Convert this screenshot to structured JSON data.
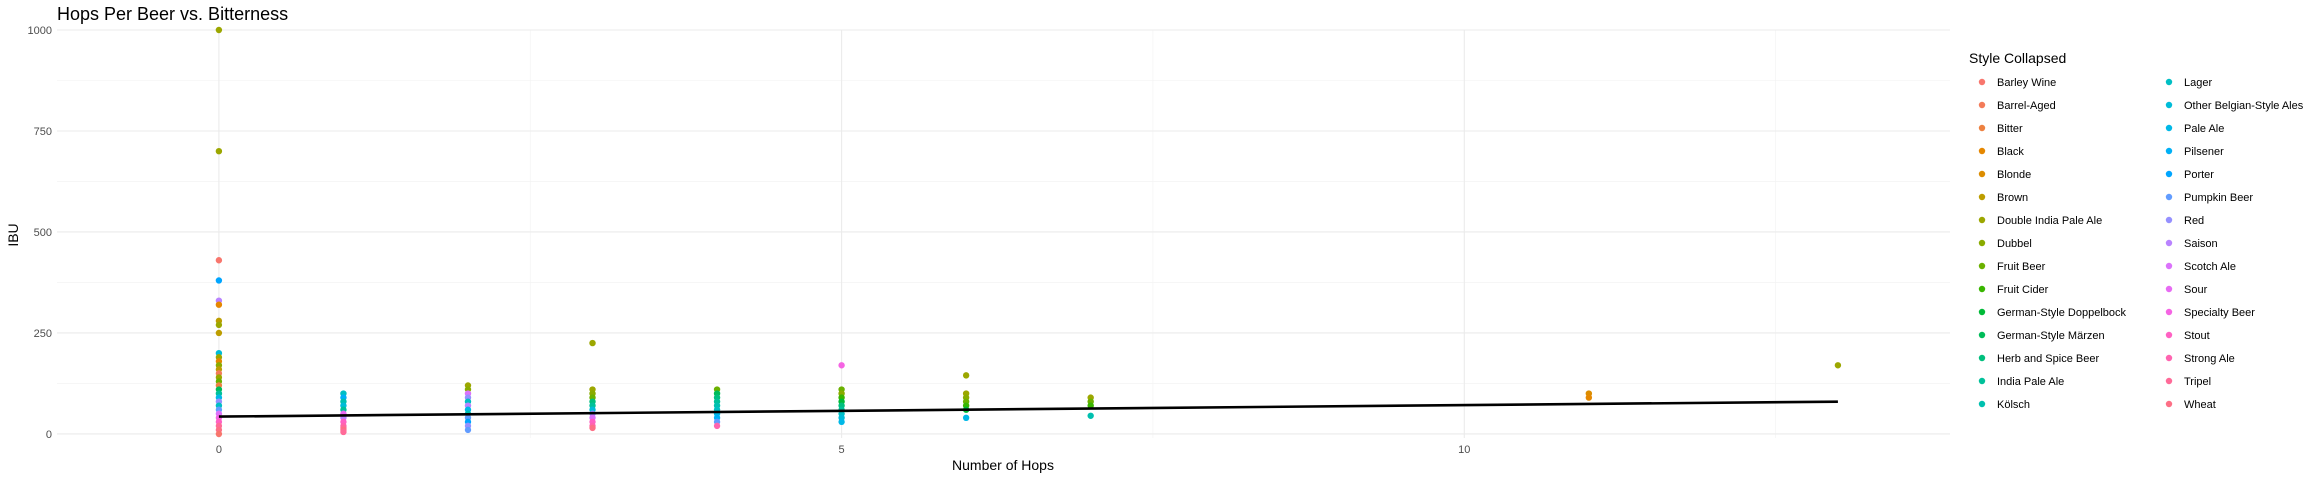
{
  "chart_data": {
    "type": "scatter",
    "title": "Hops Per Beer vs. Bitterness",
    "xlabel": "Number of Hops",
    "ylabel": "IBU",
    "xlim": [
      -1.3,
      13.9
    ],
    "ylim": [
      -10,
      1000
    ],
    "x_ticks": [
      0,
      5,
      10
    ],
    "y_ticks": [
      0,
      250,
      500,
      750,
      1000
    ],
    "grid": true,
    "legend": {
      "title": "Style Collapsed",
      "placement": "right",
      "entries": [
        {
          "name": "Barley Wine",
          "color": "#F8766D"
        },
        {
          "name": "Barrel-Aged",
          "color": "#F37B59"
        },
        {
          "name": "Bitter",
          "color": "#ED8141"
        },
        {
          "name": "Black",
          "color": "#E58700"
        },
        {
          "name": "Blonde",
          "color": "#DC8D00"
        },
        {
          "name": "Brown",
          "color": "#BD9D00"
        },
        {
          "name": "Double India Pale Ale",
          "color": "#9CA700"
        },
        {
          "name": "Dubbel",
          "color": "#8AAB00"
        },
        {
          "name": "Fruit Beer",
          "color": "#6BB100"
        },
        {
          "name": "Fruit Cider",
          "color": "#39B600"
        },
        {
          "name": "German-Style Doppelbock",
          "color": "#00BA38"
        },
        {
          "name": "German-Style Märzen",
          "color": "#00BC59"
        },
        {
          "name": "Herb and Spice Beer",
          "color": "#00BF7D"
        },
        {
          "name": "India Pale Ale",
          "color": "#00C19A"
        },
        {
          "name": "Kölsch",
          "color": "#00C0AF"
        },
        {
          "name": "Lager",
          "color": "#00BFC4"
        },
        {
          "name": "Other Belgian-Style Ales",
          "color": "#00BCD8"
        },
        {
          "name": "Pale Ale",
          "color": "#00B8E7"
        },
        {
          "name": "Pilsener",
          "color": "#00B0F6"
        },
        {
          "name": "Porter",
          "color": "#00A5FF"
        },
        {
          "name": "Pumpkin Beer",
          "color": "#619CFF"
        },
        {
          "name": "Red",
          "color": "#9590FF"
        },
        {
          "name": "Saison",
          "color": "#B983FF"
        },
        {
          "name": "Scotch Ale",
          "color": "#DB72FB"
        },
        {
          "name": "Sour",
          "color": "#E76BF3"
        },
        {
          "name": "Specialty Beer",
          "color": "#F564E3"
        },
        {
          "name": "Stout",
          "color": "#FF61C3"
        },
        {
          "name": "Strong Ale",
          "color": "#FF64B0"
        },
        {
          "name": "Tripel",
          "color": "#FF6A98"
        },
        {
          "name": "Wheat",
          "color": "#FD6F86"
        }
      ]
    },
    "points": [
      {
        "x": 0,
        "y": 1000,
        "color": "#9CA700"
      },
      {
        "x": 0,
        "y": 700,
        "color": "#9CA700"
      },
      {
        "x": 0,
        "y": 430,
        "color": "#F8766D"
      },
      {
        "x": 0,
        "y": 380,
        "color": "#00A5FF"
      },
      {
        "x": 0,
        "y": 330,
        "color": "#B983FF"
      },
      {
        "x": 0,
        "y": 320,
        "color": "#E58700"
      },
      {
        "x": 0,
        "y": 280,
        "color": "#BD9D00"
      },
      {
        "x": 0,
        "y": 270,
        "color": "#9CA700"
      },
      {
        "x": 0,
        "y": 250,
        "color": "#BD9D00"
      },
      {
        "x": 0,
        "y": 200,
        "color": "#00BCD8"
      },
      {
        "x": 0,
        "y": 190,
        "color": "#9CA700"
      },
      {
        "x": 0,
        "y": 180,
        "color": "#E58700"
      },
      {
        "x": 0,
        "y": 170,
        "color": "#8AAB00"
      },
      {
        "x": 0,
        "y": 160,
        "color": "#BD9D00"
      },
      {
        "x": 0,
        "y": 150,
        "color": "#F37B59"
      },
      {
        "x": 0,
        "y": 140,
        "color": "#9CA700"
      },
      {
        "x": 0,
        "y": 130,
        "color": "#6BB100"
      },
      {
        "x": 0,
        "y": 120,
        "color": "#ED8141"
      },
      {
        "x": 0,
        "y": 110,
        "color": "#00BC59"
      },
      {
        "x": 0,
        "y": 100,
        "color": "#00C19A"
      },
      {
        "x": 0,
        "y": 90,
        "color": "#00B8E7"
      },
      {
        "x": 0,
        "y": 80,
        "color": "#9590FF"
      },
      {
        "x": 0,
        "y": 70,
        "color": "#00BFC4"
      },
      {
        "x": 0,
        "y": 60,
        "color": "#619CFF"
      },
      {
        "x": 0,
        "y": 50,
        "color": "#DB72FB"
      },
      {
        "x": 0,
        "y": 40,
        "color": "#F564E3"
      },
      {
        "x": 0,
        "y": 30,
        "color": "#FF61C3"
      },
      {
        "x": 0,
        "y": 20,
        "color": "#FF6A98"
      },
      {
        "x": 0,
        "y": 10,
        "color": "#FD6F86"
      },
      {
        "x": 0,
        "y": 0,
        "color": "#F8766D"
      },
      {
        "x": 1,
        "y": 100,
        "color": "#00BFC4"
      },
      {
        "x": 1,
        "y": 90,
        "color": "#00B0F6"
      },
      {
        "x": 1,
        "y": 80,
        "color": "#00C0AF"
      },
      {
        "x": 1,
        "y": 70,
        "color": "#00BCD8"
      },
      {
        "x": 1,
        "y": 60,
        "color": "#00C19A"
      },
      {
        "x": 1,
        "y": 50,
        "color": "#E76BF3"
      },
      {
        "x": 1,
        "y": 40,
        "color": "#B983FF"
      },
      {
        "x": 1,
        "y": 30,
        "color": "#FF61C3"
      },
      {
        "x": 1,
        "y": 20,
        "color": "#FF64B0"
      },
      {
        "x": 1,
        "y": 15,
        "color": "#FF6A98"
      },
      {
        "x": 1,
        "y": 10,
        "color": "#FD6F86"
      },
      {
        "x": 1,
        "y": 5,
        "color": "#FF6A98"
      },
      {
        "x": 2,
        "y": 120,
        "color": "#9CA700"
      },
      {
        "x": 2,
        "y": 110,
        "color": "#8AAB00"
      },
      {
        "x": 2,
        "y": 100,
        "color": "#DB72FB"
      },
      {
        "x": 2,
        "y": 90,
        "color": "#9590FF"
      },
      {
        "x": 2,
        "y": 80,
        "color": "#00BFC4"
      },
      {
        "x": 2,
        "y": 70,
        "color": "#B983FF"
      },
      {
        "x": 2,
        "y": 60,
        "color": "#00B8E7"
      },
      {
        "x": 2,
        "y": 50,
        "color": "#00C0AF"
      },
      {
        "x": 2,
        "y": 40,
        "color": "#619CFF"
      },
      {
        "x": 2,
        "y": 30,
        "color": "#00A5FF"
      },
      {
        "x": 2,
        "y": 20,
        "color": "#9590FF"
      },
      {
        "x": 2,
        "y": 10,
        "color": "#619CFF"
      },
      {
        "x": 3,
        "y": 225,
        "color": "#9CA700"
      },
      {
        "x": 3,
        "y": 110,
        "color": "#9CA700"
      },
      {
        "x": 3,
        "y": 100,
        "color": "#8AAB00"
      },
      {
        "x": 3,
        "y": 90,
        "color": "#6BB100"
      },
      {
        "x": 3,
        "y": 80,
        "color": "#00BF7D"
      },
      {
        "x": 3,
        "y": 70,
        "color": "#00C19A"
      },
      {
        "x": 3,
        "y": 60,
        "color": "#00BCD8"
      },
      {
        "x": 3,
        "y": 50,
        "color": "#9590FF"
      },
      {
        "x": 3,
        "y": 40,
        "color": "#DB72FB"
      },
      {
        "x": 3,
        "y": 30,
        "color": "#FF61C3"
      },
      {
        "x": 3,
        "y": 20,
        "color": "#FF64B0"
      },
      {
        "x": 3,
        "y": 15,
        "color": "#FD6F86"
      },
      {
        "x": 4,
        "y": 110,
        "color": "#6BB100"
      },
      {
        "x": 4,
        "y": 100,
        "color": "#00BC59"
      },
      {
        "x": 4,
        "y": 90,
        "color": "#00BF7D"
      },
      {
        "x": 4,
        "y": 80,
        "color": "#00C19A"
      },
      {
        "x": 4,
        "y": 70,
        "color": "#00C0AF"
      },
      {
        "x": 4,
        "y": 60,
        "color": "#00BFC4"
      },
      {
        "x": 4,
        "y": 50,
        "color": "#00B8E7"
      },
      {
        "x": 4,
        "y": 40,
        "color": "#00B0F6"
      },
      {
        "x": 4,
        "y": 30,
        "color": "#619CFF"
      },
      {
        "x": 4,
        "y": 20,
        "color": "#FF64B0"
      },
      {
        "x": 5,
        "y": 170,
        "color": "#F564E3"
      },
      {
        "x": 5,
        "y": 110,
        "color": "#6BB100"
      },
      {
        "x": 5,
        "y": 100,
        "color": "#8AAB00"
      },
      {
        "x": 5,
        "y": 90,
        "color": "#39B600"
      },
      {
        "x": 5,
        "y": 80,
        "color": "#00BA38"
      },
      {
        "x": 5,
        "y": 70,
        "color": "#00BF7D"
      },
      {
        "x": 5,
        "y": 60,
        "color": "#00C19A"
      },
      {
        "x": 5,
        "y": 50,
        "color": "#00BFC4"
      },
      {
        "x": 5,
        "y": 40,
        "color": "#00BCD8"
      },
      {
        "x": 5,
        "y": 30,
        "color": "#00B8E7"
      },
      {
        "x": 6,
        "y": 145,
        "color": "#9CA700"
      },
      {
        "x": 6,
        "y": 100,
        "color": "#9CA700"
      },
      {
        "x": 6,
        "y": 90,
        "color": "#8AAB00"
      },
      {
        "x": 6,
        "y": 80,
        "color": "#6BB100"
      },
      {
        "x": 6,
        "y": 70,
        "color": "#39B600"
      },
      {
        "x": 6,
        "y": 60,
        "color": "#00BA38"
      },
      {
        "x": 6,
        "y": 40,
        "color": "#00B8E7"
      },
      {
        "x": 7,
        "y": 90,
        "color": "#9CA700"
      },
      {
        "x": 7,
        "y": 80,
        "color": "#6BB100"
      },
      {
        "x": 7,
        "y": 70,
        "color": "#39B600"
      },
      {
        "x": 7,
        "y": 45,
        "color": "#00C0AF"
      },
      {
        "x": 11,
        "y": 100,
        "color": "#DC8D00"
      },
      {
        "x": 11,
        "y": 90,
        "color": "#E58700"
      },
      {
        "x": 13,
        "y": 170,
        "color": "#9CA700"
      }
    ],
    "trend_line": {
      "x": [
        0,
        13
      ],
      "y": [
        43,
        80
      ],
      "color": "#000000"
    }
  }
}
